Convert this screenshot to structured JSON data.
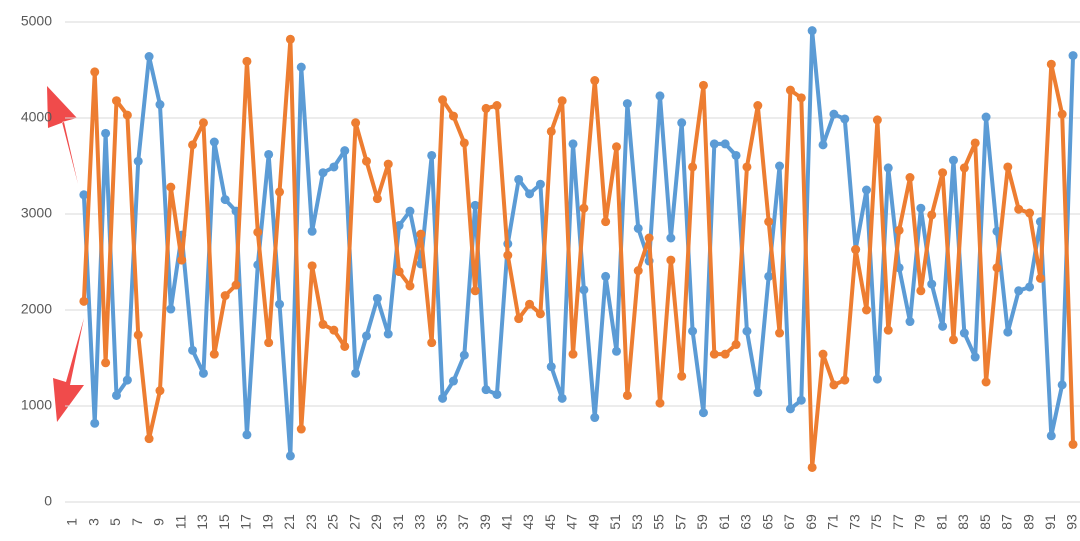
{
  "chart_data": {
    "type": "line",
    "categories": [
      "1",
      null,
      "3",
      null,
      "5",
      null,
      "7",
      null,
      "9",
      null,
      "11",
      null,
      "13",
      null,
      "15",
      null,
      "17",
      null,
      "19",
      null,
      "21",
      null,
      "23",
      null,
      "25",
      null,
      "27",
      null,
      "29",
      null,
      "31",
      null,
      "33",
      null,
      "35",
      null,
      "37",
      null,
      "39",
      null,
      "41",
      null,
      "43",
      null,
      "45",
      null,
      "47",
      null,
      "49",
      null,
      "51",
      null,
      "53",
      null,
      "55",
      null,
      "57",
      null,
      "59",
      null,
      "61",
      null,
      "63",
      null,
      "65",
      null,
      "67",
      null,
      "69",
      null,
      "71",
      null,
      "73",
      null,
      "75",
      null,
      "77",
      null,
      "79",
      null,
      "81",
      null,
      "83",
      null,
      "85",
      null,
      "87",
      null,
      "89",
      null,
      "91",
      null,
      "93"
    ],
    "series": [
      {
        "color": "#5b9bd5",
        "values": [
          null,
          3200,
          820,
          3840,
          1110,
          1270,
          3550,
          4640,
          4140,
          2010,
          2780,
          1580,
          1340,
          3750,
          3150,
          3030,
          700,
          2470,
          3620,
          2060,
          480,
          4530,
          2820,
          3430,
          3490,
          3660,
          1340,
          1730,
          2120,
          1750,
          2880,
          3030,
          2480,
          3610,
          1080,
          1260,
          1530,
          3090,
          1170,
          1120,
          2690,
          3360,
          3210,
          3310,
          1410,
          1080,
          3730,
          2210,
          880,
          2350,
          1570,
          4150,
          2850,
          2510,
          4230,
          2750,
          3950,
          1780,
          930,
          3730,
          3730,
          3610,
          1780,
          1140,
          2350,
          3500,
          970,
          1060,
          4910,
          3720,
          4040,
          3990,
          2630,
          3250,
          1280,
          3480,
          2440,
          1880,
          3060,
          2270,
          1830,
          3560,
          1760,
          1510,
          4010,
          2820,
          1770,
          2200,
          2240,
          2920,
          690,
          1220,
          4650
        ]
      },
      {
        "color": "#ed7d31",
        "values": [
          null,
          2090,
          4480,
          1450,
          4180,
          4030,
          1740,
          660,
          1160,
          3280,
          2520,
          3720,
          3950,
          1540,
          2150,
          2260,
          4590,
          2810,
          1660,
          3230,
          4820,
          760,
          2460,
          1850,
          1790,
          1620,
          3950,
          3550,
          3160,
          3520,
          2400,
          2250,
          2790,
          1660,
          4190,
          4020,
          3740,
          2200,
          4100,
          4130,
          2570,
          1910,
          2060,
          1960,
          3860,
          4180,
          1540,
          3060,
          4390,
          2920,
          3700,
          1110,
          2410,
          2750,
          1030,
          2520,
          1310,
          3490,
          4340,
          1540,
          1540,
          1640,
          3490,
          4130,
          2920,
          1760,
          4290,
          4210,
          360,
          1540,
          1220,
          1270,
          2630,
          2000,
          3980,
          1790,
          2830,
          3380,
          2200,
          2990,
          3430,
          1690,
          3480,
          3740,
          1250,
          2440,
          3490,
          3050,
          3010,
          2330,
          4560,
          4040,
          600
        ]
      }
    ],
    "ylim": [
      0,
      5000
    ],
    "yticks": [
      0,
      1000,
      2000,
      3000,
      4000,
      5000
    ],
    "grid": true
  }
}
